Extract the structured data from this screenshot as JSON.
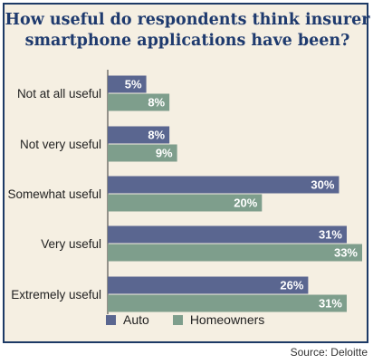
{
  "chart_data": {
    "type": "bar",
    "orientation": "horizontal",
    "title": "How useful do respondents think insurer smartphone applications have been?",
    "categories": [
      "Not at all useful",
      "Not very useful",
      "Somewhat useful",
      "Very useful",
      "Extremely useful"
    ],
    "series": [
      {
        "name": "Auto",
        "values": [
          5,
          8,
          30,
          31,
          26
        ],
        "labels": [
          "5%",
          "8%",
          "30%",
          "31%",
          "26%"
        ],
        "color": "#5a6690"
      },
      {
        "name": "Homeowners",
        "values": [
          8,
          9,
          20,
          33,
          31
        ],
        "labels": [
          "8%",
          "9%",
          "20%",
          "33%",
          "31%"
        ],
        "color": "#7e9e8c"
      }
    ],
    "xlim": [
      0,
      33
    ],
    "grid": false,
    "legend_position": "bottom",
    "source": "Source: Deloitte"
  }
}
